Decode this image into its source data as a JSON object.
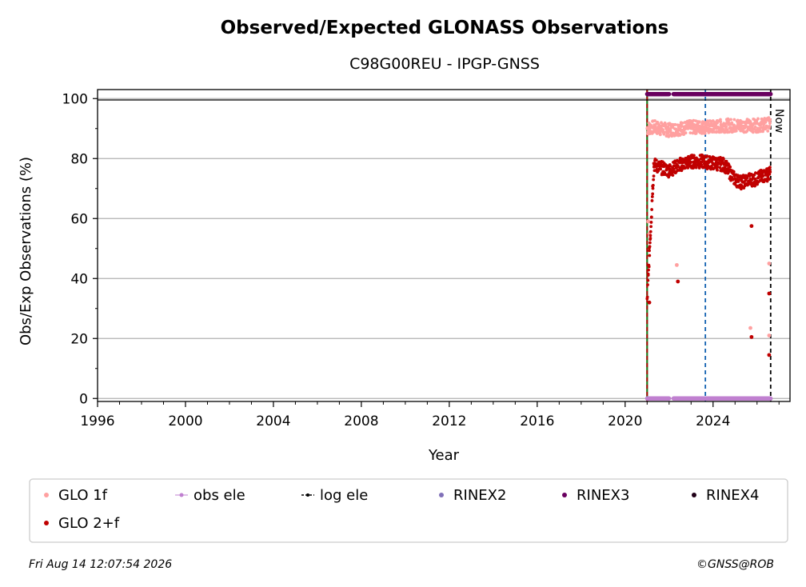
{
  "chart_data": {
    "type": "scatter",
    "title": "Observed/Expected GLONASS Observations",
    "subtitle": "C98G00REU - IPGP-GNSS",
    "xlabel": "Year",
    "ylabel": "Obs/Exp Observations (%)",
    "xlim": [
      1996,
      2027.5
    ],
    "ylim": [
      -1,
      103
    ],
    "xticks": [
      "1996",
      "2000",
      "2004",
      "2008",
      "2012",
      "2016",
      "2020",
      "2024"
    ],
    "yticks": [
      "0",
      "20",
      "40",
      "60",
      "80",
      "100"
    ],
    "grid": "horizontal",
    "legend_position": "bottom",
    "now_label": "Now",
    "legend": [
      {
        "label": "GLO 1f",
        "color": "#ffa0a0",
        "style": "dot"
      },
      {
        "label": "obs ele",
        "color": "#c080d0",
        "style": "line-dot"
      },
      {
        "label": "log ele",
        "color": "#000000",
        "style": "dash-dot"
      },
      {
        "label": "RINEX2",
        "color": "#8070b8",
        "style": "dot"
      },
      {
        "label": "RINEX3",
        "color": "#6a0060",
        "style": "dot"
      },
      {
        "label": "RINEX4",
        "color": "#200018",
        "style": "dot"
      },
      {
        "label": "GLO 2+f",
        "color": "#c00000",
        "style": "dot"
      }
    ],
    "vertical_lines": [
      {
        "x": 2021.0,
        "color": "#1a7a1a",
        "style": "solid"
      },
      {
        "x": 2021.0,
        "color": "#b00000",
        "style": "dashed"
      },
      {
        "x": 2023.65,
        "color": "#1060b0",
        "style": "dashed"
      },
      {
        "x": 2026.62,
        "color": "#000000",
        "style": "dashed"
      }
    ],
    "series": [
      {
        "name": "GLO 1f",
        "color": "#ffa0a0",
        "segments": [
          {
            "x": [
              2021.0,
              2021.3,
              2021.6,
              2022.0,
              2022.5,
              2023.0,
              2023.5,
              2024.0,
              2024.5,
              2025.0,
              2025.5,
              2026.0,
              2026.6
            ],
            "y": [
              90,
              90.5,
              90,
              89.5,
              90,
              90.5,
              90.5,
              90.5,
              91,
              91,
              91,
              91,
              91.5
            ]
          }
        ],
        "outliers": [
          [
            2022.35,
            44.5
          ],
          [
            2025.7,
            23.5
          ],
          [
            2026.55,
            45
          ],
          [
            2026.55,
            21
          ],
          [
            2021.05,
            59
          ],
          [
            2021.1,
            55
          ]
        ]
      },
      {
        "name": "GLO 2+f",
        "color": "#c00000",
        "segments": [
          {
            "x": [
              2021.0,
              2021.05,
              2021.1,
              2021.15,
              2021.2,
              2021.25,
              2021.3
            ],
            "y": [
              33,
              40,
              48,
              55,
              62,
              70,
              76
            ]
          },
          {
            "x": [
              2021.3,
              2021.6,
              2022.0,
              2022.5,
              2023.0,
              2023.5,
              2024.0,
              2024.5,
              2024.8,
              2025.0,
              2025.3,
              2025.6,
              2025.9,
              2026.2,
              2026.6
            ],
            "y": [
              78,
              77,
              76,
              78,
              79,
              79,
              78.5,
              78,
              75,
              73,
              72,
              73,
              73,
              74,
              75
            ]
          }
        ],
        "outliers": [
          [
            2022.4,
            39
          ],
          [
            2025.75,
            57.5
          ],
          [
            2025.75,
            20.5
          ],
          [
            2026.55,
            35
          ],
          [
            2026.55,
            14.5
          ],
          [
            2021.1,
            32
          ]
        ]
      },
      {
        "name": "RINEX3",
        "color": "#6a0060",
        "segments": [
          {
            "x": [
              2021.0,
              2022.0
            ],
            "y": [
              101.5,
              101.5
            ]
          },
          {
            "x": [
              2022.2,
              2026.62
            ],
            "y": [
              101.5,
              101.5
            ]
          }
        ]
      },
      {
        "name": "obs ele",
        "color": "#c080d0",
        "segments": [
          {
            "x": [
              2021.0,
              2022.0
            ],
            "y": [
              0,
              0
            ]
          },
          {
            "x": [
              2022.2,
              2026.62
            ],
            "y": [
              0,
              0
            ]
          }
        ]
      }
    ]
  },
  "footer": {
    "timestamp": "Fri Aug 14 12:07:54 2026",
    "credit": "©GNSS@ROB"
  }
}
